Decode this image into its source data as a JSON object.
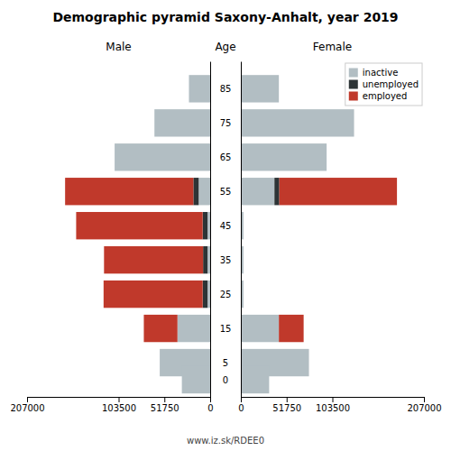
{
  "chart_data": [
    {
      "type": "bar",
      "orientation": "horizontal",
      "stacked": true,
      "title": "Demographic pyramid Saxony-Anhalt, year 2019",
      "subtitle": "www.iz.sk/RDEE0",
      "xlabel": "Male",
      "ylabel": "Age",
      "categories": [
        85,
        75,
        65,
        55,
        45,
        35,
        25,
        15,
        5,
        0
      ],
      "series": [
        {
          "color": "#b2bec3",
          "values": [
            24000,
            63000,
            108000,
            13000,
            3000,
            3000,
            3000,
            37000,
            57000,
            32000
          ]
        },
        {
          "color": "#2d3436",
          "values": [
            0,
            0,
            0,
            6000,
            5500,
            5000,
            5500,
            0,
            0,
            0
          ]
        },
        {
          "color": "#c0392b",
          "values": [
            0,
            0,
            0,
            145000,
            143000,
            112000,
            112000,
            38000,
            0,
            0
          ]
        }
      ],
      "xlim": [
        207000,
        0
      ],
      "xticks": [
        207000,
        103500,
        51750,
        0
      ],
      "ylim": [
        -5,
        93
      ]
    },
    {
      "type": "bar",
      "orientation": "horizontal",
      "stacked": true,
      "xlabel": "Female",
      "categories": [
        85,
        75,
        65,
        55,
        45,
        35,
        25,
        15,
        5,
        0
      ],
      "series": [
        {
          "name": "inactive",
          "color": "#b2bec3",
          "values": [
            43000,
            128000,
            97000,
            38000,
            3000,
            3000,
            3000,
            43000,
            77000,
            32000
          ]
        },
        {
          "name": "unemployed",
          "color": "#2d3436",
          "values": [
            0,
            0,
            0,
            5500,
            0,
            0,
            0,
            0,
            0,
            0
          ]
        },
        {
          "name": "employed",
          "color": "#c0392b",
          "values": [
            0,
            0,
            0,
            133000,
            0,
            0,
            0,
            28000,
            0,
            0
          ]
        }
      ],
      "xlim": [
        0,
        207000
      ],
      "xticks": [
        0,
        51750,
        103500,
        207000
      ],
      "ylim": [
        -5,
        93
      ],
      "legend": "upper right"
    }
  ]
}
